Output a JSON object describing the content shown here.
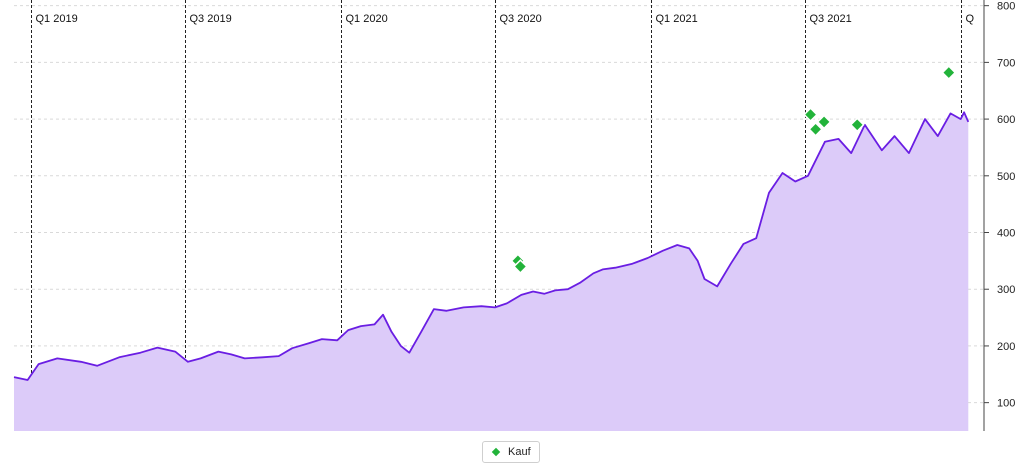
{
  "chart_data": {
    "type": "area",
    "quarter_labels": [
      {
        "label": "Q1 2019",
        "date": "2019-01-01"
      },
      {
        "label": "Q3 2019",
        "date": "2019-07-01"
      },
      {
        "label": "Q1 2020",
        "date": "2020-01-01"
      },
      {
        "label": "Q3 2020",
        "date": "2020-07-01"
      },
      {
        "label": "Q1 2021",
        "date": "2021-01-01"
      },
      {
        "label": "Q3 2021",
        "date": "2021-07-01"
      },
      {
        "label": "Q",
        "date": "2022-01-01"
      }
    ],
    "y_ticks": [
      100,
      200,
      300,
      400,
      500,
      600,
      700,
      800
    ],
    "ylim": [
      50,
      810
    ],
    "xlim": [
      "2018-12-12",
      "2022-01-12"
    ],
    "grid": true,
    "legend": "bottom-center",
    "series": [
      {
        "values": [
          [
            "2018-12-12",
            145
          ],
          [
            "2018-12-28",
            140
          ],
          [
            "2019-01-10",
            168
          ],
          [
            "2019-02-01",
            178
          ],
          [
            "2019-03-01",
            172
          ],
          [
            "2019-03-20",
            165
          ],
          [
            "2019-04-15",
            180
          ],
          [
            "2019-05-10",
            188
          ],
          [
            "2019-05-30",
            197
          ],
          [
            "2019-06-20",
            190
          ],
          [
            "2019-07-05",
            172
          ],
          [
            "2019-07-20",
            178
          ],
          [
            "2019-08-10",
            190
          ],
          [
            "2019-08-25",
            185
          ],
          [
            "2019-09-10",
            178
          ],
          [
            "2019-10-01",
            180
          ],
          [
            "2019-10-20",
            182
          ],
          [
            "2019-11-05",
            196
          ],
          [
            "2019-11-25",
            205
          ],
          [
            "2019-12-10",
            212
          ],
          [
            "2019-12-28",
            210
          ],
          [
            "2020-01-10",
            228
          ],
          [
            "2020-01-25",
            235
          ],
          [
            "2020-02-10",
            238
          ],
          [
            "2020-02-20",
            255
          ],
          [
            "2020-03-01",
            225
          ],
          [
            "2020-03-12",
            200
          ],
          [
            "2020-03-22",
            188
          ],
          [
            "2020-04-05",
            225
          ],
          [
            "2020-04-20",
            265
          ],
          [
            "2020-05-05",
            262
          ],
          [
            "2020-05-25",
            268
          ],
          [
            "2020-06-15",
            270
          ],
          [
            "2020-07-01",
            268
          ],
          [
            "2020-07-15",
            275
          ],
          [
            "2020-08-01",
            290
          ],
          [
            "2020-08-15",
            296
          ],
          [
            "2020-08-28",
            292
          ],
          [
            "2020-09-10",
            298
          ],
          [
            "2020-09-25",
            300
          ],
          [
            "2020-10-10",
            312
          ],
          [
            "2020-10-25",
            328
          ],
          [
            "2020-11-05",
            335
          ],
          [
            "2020-11-20",
            338
          ],
          [
            "2020-12-10",
            345
          ],
          [
            "2020-12-28",
            355
          ],
          [
            "2021-01-15",
            368
          ],
          [
            "2021-02-01",
            378
          ],
          [
            "2021-02-15",
            372
          ],
          [
            "2021-02-25",
            350
          ],
          [
            "2021-03-05",
            318
          ],
          [
            "2021-03-20",
            305
          ],
          [
            "2021-04-05",
            345
          ],
          [
            "2021-04-20",
            380
          ],
          [
            "2021-05-05",
            390
          ],
          [
            "2021-05-20",
            470
          ],
          [
            "2021-06-05",
            505
          ],
          [
            "2021-06-20",
            490
          ],
          [
            "2021-07-05",
            500
          ],
          [
            "2021-07-25",
            560
          ],
          [
            "2021-08-10",
            565
          ],
          [
            "2021-08-25",
            540
          ],
          [
            "2021-09-10",
            590
          ],
          [
            "2021-09-30",
            545
          ],
          [
            "2021-10-15",
            570
          ],
          [
            "2021-11-01",
            540
          ],
          [
            "2021-11-20",
            600
          ],
          [
            "2021-12-05",
            570
          ],
          [
            "2021-12-20",
            610
          ],
          [
            "2022-01-01",
            600
          ],
          [
            "2022-01-05",
            612
          ],
          [
            "2022-01-10",
            595
          ]
        ]
      }
    ],
    "kauf_points": [
      [
        "2020-07-28",
        350
      ],
      [
        "2020-07-31",
        340
      ],
      [
        "2021-07-08",
        608
      ],
      [
        "2021-07-14",
        582
      ],
      [
        "2021-07-24",
        595
      ],
      [
        "2021-09-01",
        590
      ],
      [
        "2021-12-18",
        682
      ]
    ],
    "legend_label": "Kauf",
    "colors": {
      "line": "#6a1ee3",
      "fill": "#dccbf9",
      "kauf": "#22b33a"
    }
  }
}
